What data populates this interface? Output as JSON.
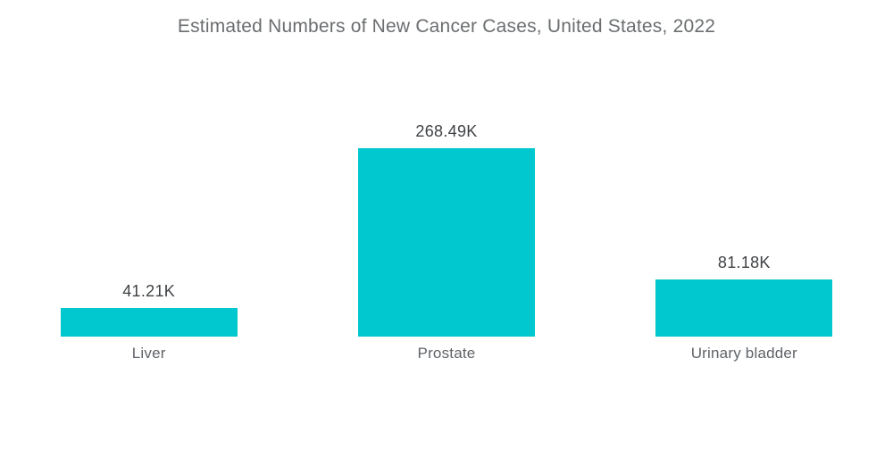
{
  "chart_data": {
    "type": "bar",
    "title": "Estimated Numbers of New Cancer Cases, United States, 2022",
    "categories": [
      "Liver",
      "Prostate",
      "Urinary bladder"
    ],
    "values": [
      41.21,
      268.49,
      81.18
    ],
    "value_labels": [
      "41.21K",
      "268.49K",
      "81.18K"
    ],
    "unit": "K",
    "xlabel": "",
    "ylabel": "",
    "ylim": [
      0,
      268.49
    ],
    "grid": false,
    "legend": "none",
    "bar_color": "#00C8CE",
    "background_color": "#FFFFFF",
    "title_color": "#6B6E70",
    "value_label_color": "#3F4245",
    "category_label_color": "#5F6368"
  }
}
